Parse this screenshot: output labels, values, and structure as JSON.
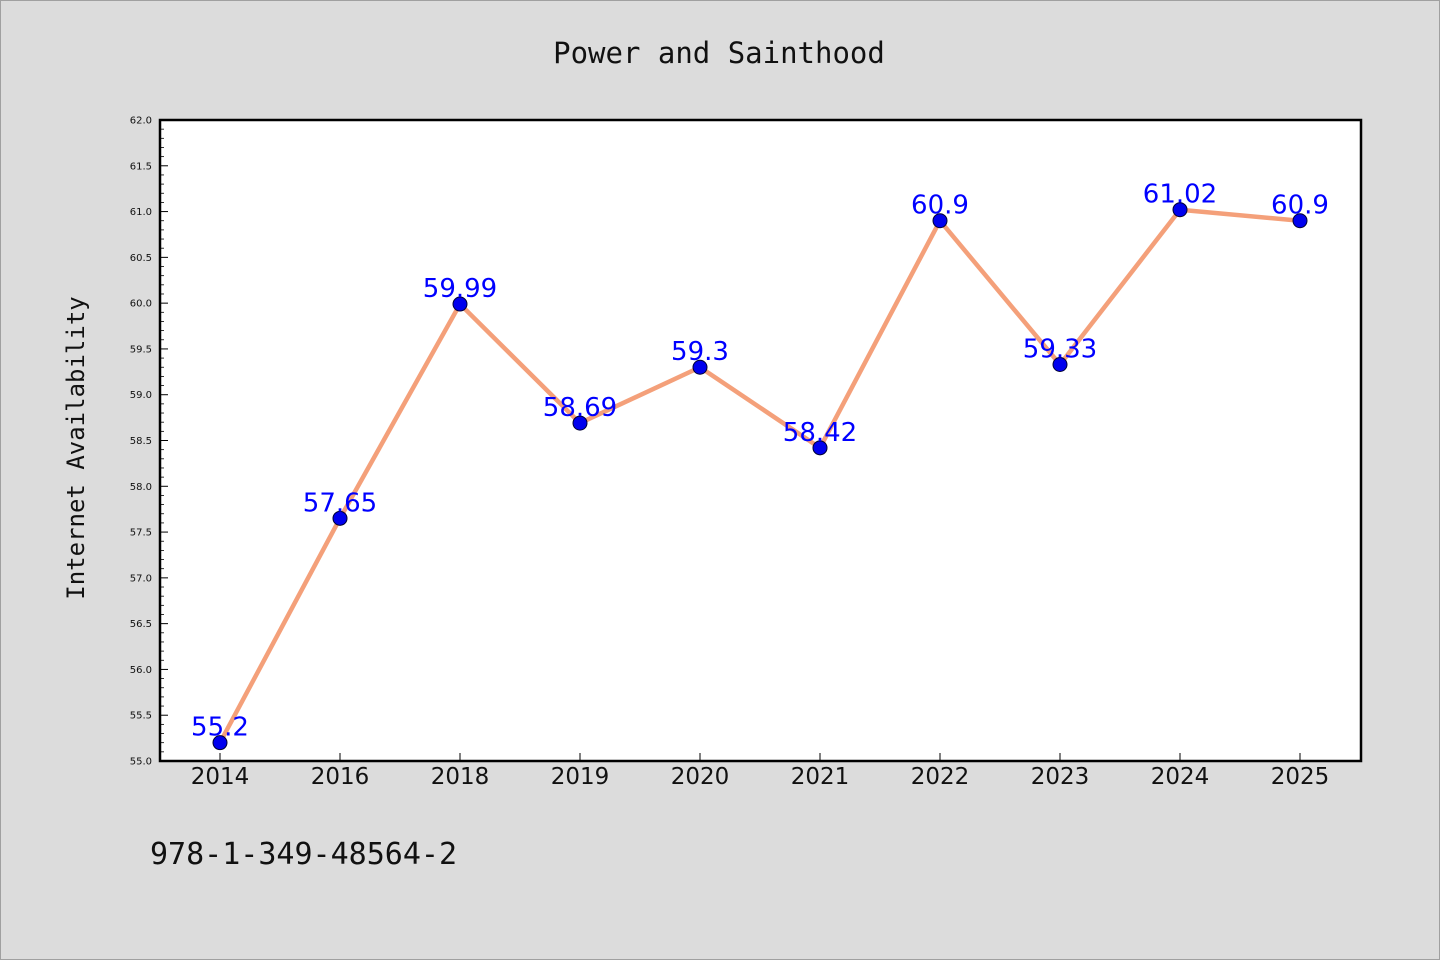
{
  "chart_data": {
    "type": "line",
    "title": "Power and Sainthood",
    "xlabel": "",
    "ylabel": "Internet Availability",
    "categories": [
      "2014",
      "2016",
      "2018",
      "2019",
      "2020",
      "2021",
      "2022",
      "2023",
      "2024",
      "2025"
    ],
    "series": [
      {
        "values": [
          55.2,
          57.65,
          59.99,
          58.69,
          59.3,
          58.42,
          60.9,
          59.33,
          61.02,
          60.9
        ],
        "labels": [
          "55.2",
          "57.65",
          "59.99",
          "58.69",
          "59.3",
          "58.42",
          "60.9",
          "59.33",
          "61.02",
          "60.9"
        ],
        "line_color": "#f4a07a",
        "marker_color": "#0000ee"
      }
    ],
    "ylim": [
      55.0,
      62.0
    ],
    "yticks": [
      "55.0",
      "55.5",
      "56.0",
      "56.5",
      "57.0",
      "57.5",
      "58.0",
      "58.5",
      "59.0",
      "59.5",
      "60.0",
      "60.5",
      "61.0",
      "61.5",
      "62.0"
    ],
    "grid": false,
    "legend": "none"
  },
  "footer": {
    "isbn": "978-1-349-48564-2"
  }
}
